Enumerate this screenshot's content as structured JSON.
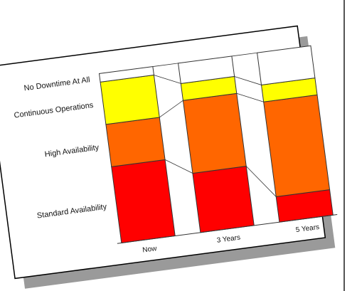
{
  "colors": {
    "no_downtime": "#ffffff",
    "continuous": "#ffff00",
    "high": "#ff6600",
    "standard": "#ff0000",
    "edge": "#333333",
    "shadow": "#9a9a9a",
    "rule": "#555555"
  },
  "chart_data": {
    "type": "bar",
    "stacked": true,
    "title": "",
    "xlabel": "",
    "ylabel": "",
    "ylim": [
      0,
      100
    ],
    "categories": [
      "Now",
      "3 Years",
      "5 Years"
    ],
    "series": [
      {
        "name": "Standard Availability",
        "values": [
          45,
          35,
          15
        ]
      },
      {
        "name": "High Availability",
        "values": [
          25,
          43,
          56
        ]
      },
      {
        "name": "Continuous Operations",
        "values": [
          25,
          10,
          10
        ]
      },
      {
        "name": "No Downtime At All",
        "values": [
          5,
          12,
          19
        ]
      }
    ],
    "legend": "left, labels aligned with each band",
    "grid": false
  }
}
